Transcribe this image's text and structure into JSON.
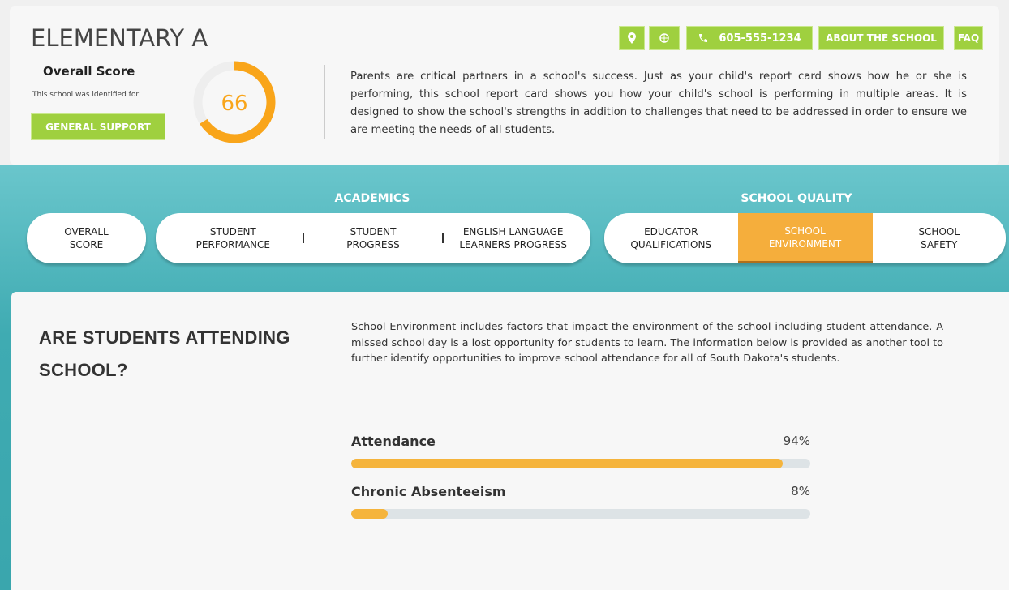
{
  "header": {
    "title": "ELEMENTARY A",
    "score_label": "Overall Score",
    "identified_text": "This school was identified for",
    "support": "GENERAL SUPPORT",
    "score": 66,
    "description": "Parents are critical partners in a school's success.  Just as your child's report card shows how he or she is performing, this school report card shows you how your child's school is performing in multiple areas.  It is designed to show the school's strengths in addition to challenges that need to be addressed in order to ensure we are meeting the needs of all students.",
    "phone": "605-555-1234",
    "about": "ABOUT THE SCHOOL",
    "faq": "FAQ"
  },
  "nav": {
    "groups": [
      "ACADEMICS",
      "SCHOOL QUALITY"
    ],
    "overall": [
      "OVERALL",
      "SCORE"
    ],
    "academics": [
      [
        "STUDENT",
        "PERFORMANCE"
      ],
      [
        "STUDENT",
        "PROGRESS"
      ],
      [
        "ENGLISH LANGUAGE",
        "LEARNERS PROGRESS"
      ]
    ],
    "quality": [
      [
        "EDUCATOR",
        "QUALIFICATIONS"
      ],
      [
        "SCHOOL",
        "ENVIRONMENT"
      ],
      [
        "SCHOOL",
        "SAFETY"
      ]
    ]
  },
  "section": {
    "heading": "ARE STUDENTS ATTENDING SCHOOL?",
    "text": "School Environment includes factors that impact the environment of the school including student attendance.  A missed school day is a lost opportunity for students to learn. The information below is provided as another tool to further identify opportunities to improve school attendance for all of South Dakota's students.",
    "metrics": [
      {
        "name": "Attendance",
        "value": 94,
        "value_label": "94%"
      },
      {
        "name": "Chronic Absenteeism",
        "value": 8,
        "value_label": "8%"
      }
    ]
  }
}
